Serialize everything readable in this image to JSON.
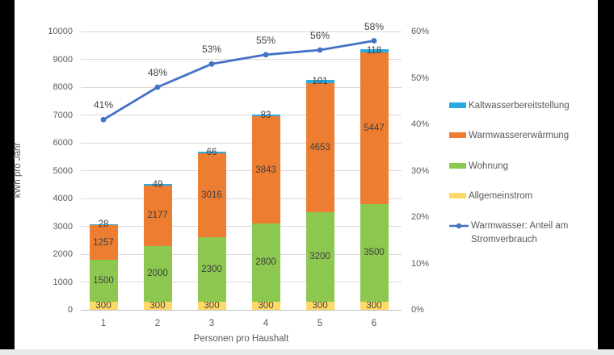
{
  "chart_data": {
    "type": "bar",
    "subtype": "stacked-column-with-percent-line",
    "title": "",
    "categories": [
      "1",
      "2",
      "3",
      "4",
      "5",
      "6"
    ],
    "xlabel": "Personen pro Haushalt",
    "ylabel": "kWh pro Jahr",
    "grid": true,
    "legend_position": "right",
    "y_left_range": [
      0,
      10000
    ],
    "y_left_step": 1000,
    "y_left_ticks": [
      "0",
      "1000",
      "2000",
      "3000",
      "4000",
      "5000",
      "6000",
      "7000",
      "8000",
      "9000",
      "10000"
    ],
    "y_right_range": [
      0,
      60
    ],
    "y_right_step": 10,
    "y_right_ticks": [
      "0%",
      "10%",
      "20%",
      "30%",
      "40%",
      "50%",
      "60%"
    ],
    "series": [
      {
        "name": "Allgemeinstrom",
        "color": "#FFD966",
        "values": [
          300,
          300,
          300,
          300,
          300,
          300
        ]
      },
      {
        "name": "Wohnung",
        "color": "#8CC850",
        "values": [
          1500,
          2000,
          2300,
          2800,
          3200,
          3500
        ]
      },
      {
        "name": "Warmwassererwärmung",
        "color": "#ED7D31",
        "values": [
          1257,
          2177,
          3016,
          3843,
          4653,
          5447
        ]
      },
      {
        "name": "Kaltwasserbereitstellung",
        "color": "#29ABE2",
        "values": [
          28,
          49,
          66,
          83,
          101,
          118
        ]
      }
    ],
    "line_series": {
      "name": "Warmwasser: Anteil am Stromverbrauch",
      "color": "#4472C4",
      "values_percent": [
        41,
        48,
        53,
        55,
        56,
        58
      ],
      "labels": [
        "41%",
        "48%",
        "53%",
        "55%",
        "56%",
        "58%"
      ]
    },
    "legend": [
      {
        "label": "Kaltwasserbereitstellung",
        "color": "#29ABE2",
        "marker": "swatch"
      },
      {
        "label": "Warmwassererwärmung",
        "color": "#ED7D31",
        "marker": "swatch"
      },
      {
        "label": "Wohnung",
        "color": "#8CC850",
        "marker": "swatch"
      },
      {
        "label": "Allgemeinstrom",
        "color": "#FFD966",
        "marker": "swatch"
      },
      {
        "label": "Warmwasser: Anteil am Stromverbrauch",
        "color": "#4472C4",
        "marker": "line"
      }
    ],
    "colors": {
      "gridline": "#D9D9D9",
      "axis_line": "#BFBFBF",
      "tick_text": "#595959",
      "data_label_text": "#404040",
      "background": "#FFFFFF",
      "side_bars": "#000000",
      "bottom_strip": "#E7EBEC"
    }
  }
}
